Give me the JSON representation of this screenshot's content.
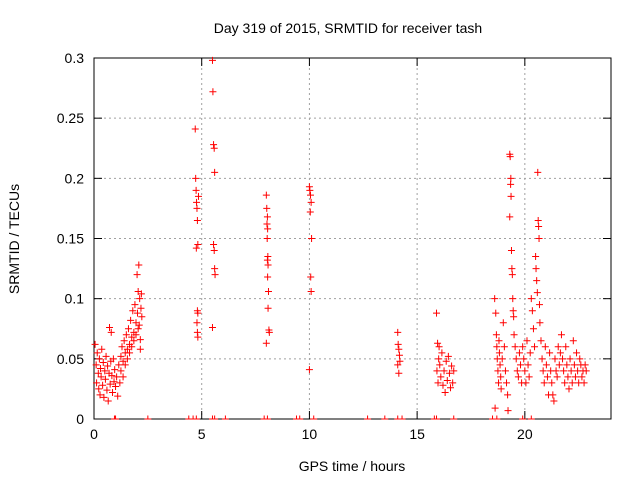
{
  "chart_data": {
    "type": "scatter",
    "title": "Day 319 of 2015, SRMTID for receiver tash",
    "xlabel": "GPS time / hours",
    "ylabel": "SRMTID / TECUs",
    "xlim": [
      0,
      24
    ],
    "ylim": [
      0,
      0.3
    ],
    "xticks": [
      0,
      5,
      10,
      15,
      20
    ],
    "xtick_labels": [
      "0",
      "5",
      "10",
      "15",
      "20"
    ],
    "yticks": [
      0,
      0.05,
      0.1,
      0.15,
      0.2,
      0.25,
      0.3
    ],
    "ytick_labels": [
      "0",
      "0.05",
      "0.1",
      "0.15",
      "0.2",
      "0.25",
      "0.3"
    ],
    "grid": true,
    "marker": "plus",
    "color": "#ff0000",
    "series": [
      {
        "name": "SRMTID",
        "points": [
          [
            0.05,
            0.062
          ],
          [
            0.1,
            0.045
          ],
          [
            0.12,
            0.03
          ],
          [
            0.15,
            0.055
          ],
          [
            0.2,
            0.038
          ],
          [
            0.22,
            0.025
          ],
          [
            0.25,
            0.05
          ],
          [
            0.28,
            0.02
          ],
          [
            0.3,
            0.042
          ],
          [
            0.33,
            0.035
          ],
          [
            0.36,
            0.058
          ],
          [
            0.4,
            0.028
          ],
          [
            0.43,
            0.047
          ],
          [
            0.46,
            0.018
          ],
          [
            0.5,
            0.04
          ],
          [
            0.53,
            0.033
          ],
          [
            0.56,
            0.052
          ],
          [
            0.6,
            0.024
          ],
          [
            0.63,
            0.044
          ],
          [
            0.66,
            0.015
          ],
          [
            0.7,
            0.038
          ],
          [
            0.72,
            0.076
          ],
          [
            0.75,
            0.029
          ],
          [
            0.78,
            0.048
          ],
          [
            0.8,
            0.072
          ],
          [
            0.83,
            0.036
          ],
          [
            0.86,
            0.022
          ],
          [
            0.9,
            0.05
          ],
          [
            0.93,
            0.031
          ],
          [
            0.96,
            0.041
          ],
          [
            1.0,
            0.027
          ],
          [
            1.05,
            0.035
          ],
          [
            1.1,
            0.019
          ],
          [
            1.15,
            0.045
          ],
          [
            1.2,
            0.03
          ],
          [
            1.25,
            0.052
          ],
          [
            1.3,
            0.06
          ],
          [
            1.35,
            0.048
          ],
          [
            1.4,
            0.065
          ],
          [
            1.45,
            0.055
          ],
          [
            1.5,
            0.07
          ],
          [
            1.55,
            0.058
          ],
          [
            1.6,
            0.075
          ],
          [
            1.65,
            0.062
          ],
          [
            1.7,
            0.082
          ],
          [
            1.75,
            0.068
          ],
          [
            1.8,
            0.09
          ],
          [
            1.85,
            0.072
          ],
          [
            1.9,
            0.095
          ],
          [
            1.95,
            0.08
          ],
          [
            2.0,
            0.12
          ],
          [
            2.02,
            0.088
          ],
          [
            2.05,
            0.106
          ],
          [
            2.08,
            0.128
          ],
          [
            2.1,
            0.078
          ],
          [
            2.12,
            0.1
          ],
          [
            2.15,
            0.066
          ],
          [
            2.18,
            0.092
          ],
          [
            2.2,
            0.104
          ],
          [
            2.22,
            0.085
          ],
          [
            1.25,
            0.04
          ],
          [
            1.35,
            0.035
          ],
          [
            1.45,
            0.045
          ],
          [
            1.55,
            0.05
          ],
          [
            1.65,
            0.055
          ],
          [
            1.75,
            0.06
          ],
          [
            1.85,
            0.065
          ],
          [
            1.95,
            0.07
          ],
          [
            2.05,
            0.075
          ],
          [
            2.15,
            0.058
          ],
          [
            4.7,
            0.241
          ],
          [
            4.72,
            0.2
          ],
          [
            4.74,
            0.19
          ],
          [
            4.76,
            0.18
          ],
          [
            4.78,
            0.175
          ],
          [
            4.8,
            0.165
          ],
          [
            4.82,
            0.145
          ],
          [
            4.75,
            0.142
          ],
          [
            4.8,
            0.09
          ],
          [
            4.82,
            0.088
          ],
          [
            4.78,
            0.08
          ],
          [
            4.8,
            0.072
          ],
          [
            4.82,
            0.068
          ],
          [
            4.85,
            0.185
          ],
          [
            5.5,
            0.298
          ],
          [
            5.52,
            0.272
          ],
          [
            5.55,
            0.228
          ],
          [
            5.58,
            0.225
          ],
          [
            5.6,
            0.205
          ],
          [
            5.55,
            0.145
          ],
          [
            5.58,
            0.14
          ],
          [
            5.6,
            0.125
          ],
          [
            5.62,
            0.12
          ],
          [
            5.5,
            0.076
          ],
          [
            8.0,
            0.186
          ],
          [
            8.02,
            0.175
          ],
          [
            8.05,
            0.168
          ],
          [
            8.03,
            0.162
          ],
          [
            8.06,
            0.158
          ],
          [
            8.04,
            0.15
          ],
          [
            8.07,
            0.135
          ],
          [
            8.05,
            0.132
          ],
          [
            8.08,
            0.128
          ],
          [
            8.06,
            0.118
          ],
          [
            8.1,
            0.106
          ],
          [
            8.08,
            0.092
          ],
          [
            8.12,
            0.074
          ],
          [
            8.14,
            0.072
          ],
          [
            8.0,
            0.063
          ],
          [
            10.0,
            0.193
          ],
          [
            10.02,
            0.19
          ],
          [
            10.05,
            0.186
          ],
          [
            10.08,
            0.18
          ],
          [
            10.04,
            0.172
          ],
          [
            10.1,
            0.15
          ],
          [
            10.06,
            0.118
          ],
          [
            10.08,
            0.106
          ],
          [
            10.0,
            0.041
          ],
          [
            14.1,
            0.072
          ],
          [
            14.12,
            0.062
          ],
          [
            14.15,
            0.058
          ],
          [
            14.18,
            0.053
          ],
          [
            14.2,
            0.048
          ],
          [
            14.1,
            0.045
          ],
          [
            14.15,
            0.038
          ],
          [
            15.9,
            0.088
          ],
          [
            15.95,
            0.063
          ],
          [
            16.0,
            0.05
          ],
          [
            16.05,
            0.045
          ],
          [
            16.1,
            0.035
          ],
          [
            16.15,
            0.055
          ],
          [
            16.2,
            0.028
          ],
          [
            16.25,
            0.04
          ],
          [
            16.3,
            0.022
          ],
          [
            16.35,
            0.048
          ],
          [
            16.4,
            0.032
          ],
          [
            16.45,
            0.052
          ],
          [
            16.5,
            0.038
          ],
          [
            16.55,
            0.026
          ],
          [
            16.6,
            0.044
          ],
          [
            16.65,
            0.03
          ],
          [
            16.7,
            0.04
          ],
          [
            15.92,
            0.04
          ],
          [
            15.97,
            0.03
          ],
          [
            16.02,
            0.06
          ],
          [
            18.6,
            0.1
          ],
          [
            18.62,
            0.009
          ],
          [
            18.65,
            0.088
          ],
          [
            18.68,
            0.07
          ],
          [
            18.7,
            0.06
          ],
          [
            18.72,
            0.05
          ],
          [
            18.75,
            0.04
          ],
          [
            18.78,
            0.03
          ],
          [
            18.8,
            0.065
          ],
          [
            18.82,
            0.055
          ],
          [
            18.85,
            0.045
          ],
          [
            18.88,
            0.035
          ],
          [
            18.9,
            0.025
          ],
          [
            18.95,
            0.05
          ],
          [
            19.0,
            0.08
          ],
          [
            19.05,
            0.06
          ],
          [
            19.1,
            0.04
          ],
          [
            19.15,
            0.03
          ],
          [
            19.2,
            0.02
          ],
          [
            19.22,
            0.007
          ],
          [
            19.3,
            0.22
          ],
          [
            19.32,
            0.218
          ],
          [
            19.35,
            0.2
          ],
          [
            19.34,
            0.195
          ],
          [
            19.36,
            0.185
          ],
          [
            19.3,
            0.168
          ],
          [
            19.38,
            0.14
          ],
          [
            19.4,
            0.125
          ],
          [
            19.42,
            0.12
          ],
          [
            19.44,
            0.1
          ],
          [
            19.46,
            0.09
          ],
          [
            19.48,
            0.085
          ],
          [
            19.5,
            0.07
          ],
          [
            19.55,
            0.06
          ],
          [
            19.6,
            0.05
          ],
          [
            19.65,
            0.04
          ],
          [
            19.7,
            0.035
          ],
          [
            19.75,
            0.055
          ],
          [
            19.8,
            0.045
          ],
          [
            19.85,
            0.03
          ],
          [
            19.9,
            0.06
          ],
          [
            19.95,
            0.05
          ],
          [
            20.0,
            0.04
          ],
          [
            20.05,
            0.03
          ],
          [
            20.1,
            0.065
          ],
          [
            20.15,
            0.045
          ],
          [
            20.2,
            0.035
          ],
          [
            20.25,
            0.055
          ],
          [
            20.3,
            0.1
          ],
          [
            20.35,
            0.09
          ],
          [
            20.4,
            0.075
          ],
          [
            20.45,
            0.06
          ],
          [
            20.5,
            0.135
          ],
          [
            20.52,
            0.125
          ],
          [
            20.55,
            0.115
          ],
          [
            20.58,
            0.105
          ],
          [
            20.6,
            0.205
          ],
          [
            20.62,
            0.165
          ],
          [
            20.64,
            0.16
          ],
          [
            20.66,
            0.15
          ],
          [
            20.68,
            0.095
          ],
          [
            20.7,
            0.08
          ],
          [
            20.75,
            0.065
          ],
          [
            20.8,
            0.05
          ],
          [
            20.85,
            0.04
          ],
          [
            20.9,
            0.03
          ],
          [
            20.95,
            0.06
          ],
          [
            21.0,
            0.045
          ],
          [
            21.05,
            0.035
          ],
          [
            21.1,
            0.02
          ],
          [
            21.15,
            0.055
          ],
          [
            21.2,
            0.04
          ],
          [
            21.25,
            0.03
          ],
          [
            21.3,
            0.02
          ],
          [
            21.35,
            0.015
          ],
          [
            21.4,
            0.05
          ],
          [
            21.45,
            0.04
          ],
          [
            21.5,
            0.035
          ],
          [
            21.55,
            0.06
          ],
          [
            21.6,
            0.045
          ],
          [
            21.65,
            0.055
          ],
          [
            21.7,
            0.07
          ],
          [
            21.75,
            0.05
          ],
          [
            21.8,
            0.04
          ],
          [
            21.85,
            0.03
          ],
          [
            21.9,
            0.06
          ],
          [
            21.95,
            0.045
          ],
          [
            22.0,
            0.035
          ],
          [
            22.05,
            0.025
          ],
          [
            22.1,
            0.05
          ],
          [
            22.15,
            0.04
          ],
          [
            22.2,
            0.03
          ],
          [
            22.25,
            0.065
          ],
          [
            22.3,
            0.045
          ],
          [
            22.35,
            0.035
          ],
          [
            22.4,
            0.055
          ],
          [
            22.45,
            0.04
          ],
          [
            22.5,
            0.03
          ],
          [
            22.55,
            0.05
          ],
          [
            22.6,
            0.045
          ],
          [
            22.65,
            0.035
          ],
          [
            22.7,
            0.04
          ],
          [
            22.75,
            0.03
          ],
          [
            22.8,
            0.045
          ],
          [
            22.85,
            0.04
          ]
        ]
      }
    ],
    "baseline_points": [
      0.95,
      1.0,
      2.5,
      4.4,
      4.6,
      4.75,
      5.5,
      5.6,
      6.1,
      7.9,
      8.05,
      9.4,
      9.55,
      10.2,
      12.7,
      13.5,
      14.1,
      14.3,
      15.8,
      15.9,
      16.7,
      18.5,
      18.7,
      19.9,
      20.3
    ]
  }
}
